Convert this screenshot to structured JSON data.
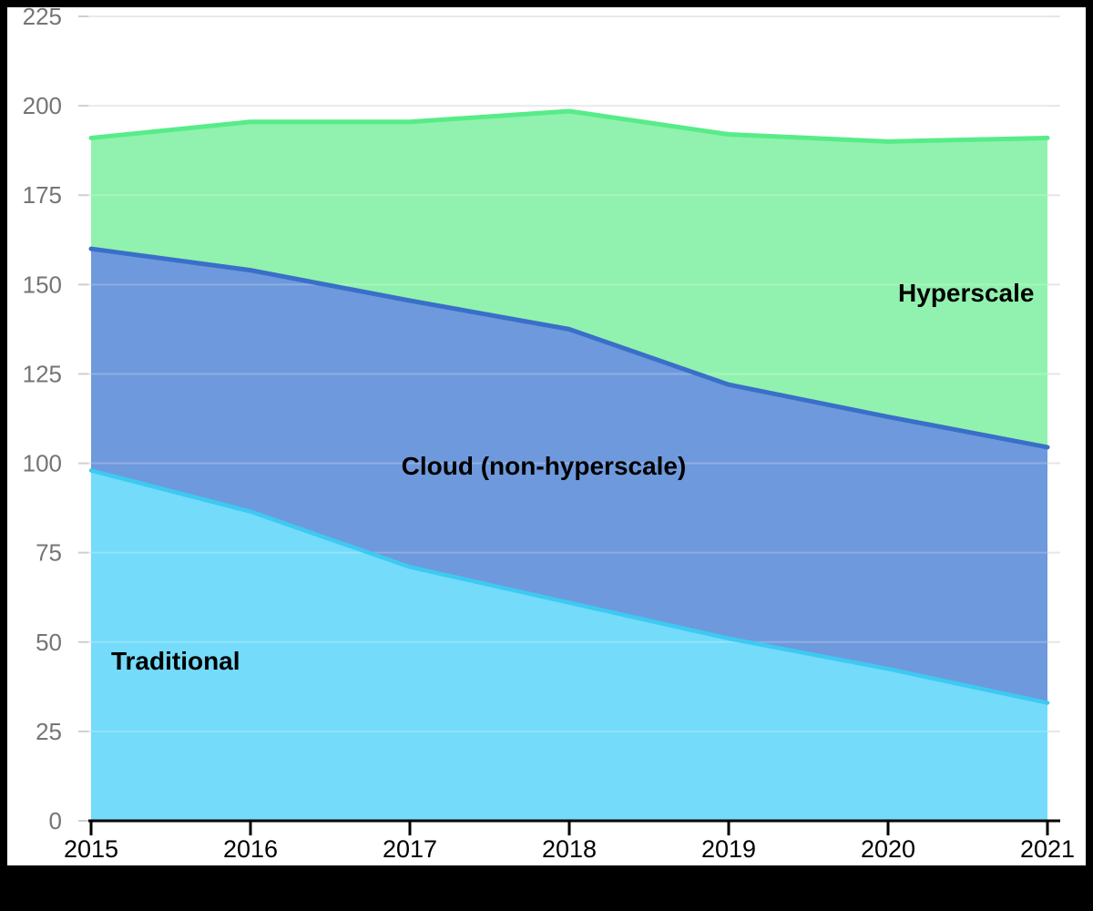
{
  "chart_data": {
    "type": "area",
    "stacked": true,
    "title": "",
    "xlabel": "",
    "ylabel": "",
    "x": [
      2015,
      2016,
      2017,
      2018,
      2019,
      2020,
      2021
    ],
    "x_tick_labels": [
      "2015",
      "2016",
      "2017",
      "2018",
      "2019",
      "2020",
      "2021"
    ],
    "y_tick_labels": [
      "0",
      "25",
      "50",
      "75",
      "100",
      "125",
      "150",
      "175",
      "200",
      "225"
    ],
    "y_tick_values": [
      0,
      25,
      50,
      75,
      100,
      125,
      150,
      175,
      200,
      225
    ],
    "ylim": [
      0,
      225
    ],
    "grid": "horizontal",
    "legend_position": "in-chart-labels",
    "series": [
      {
        "name": "Traditional",
        "values": [
          98,
          86.5,
          71,
          61,
          51,
          42.5,
          33
        ],
        "fill_color": "#74DBFA",
        "line_color": "#3DC9F2"
      },
      {
        "name": "Cloud (non-hyperscale)",
        "values": [
          62,
          67.5,
          74.5,
          76.5,
          71,
          70.5,
          71.5
        ],
        "fill_color": "#6E99DC",
        "line_color": "#3A6FC9"
      },
      {
        "name": "Hyperscale",
        "values": [
          31,
          41.5,
          50,
          61,
          70,
          77,
          86.5
        ],
        "fill_color": "#90F2AE",
        "line_color": "#57EC88"
      }
    ],
    "stacked_totals": [
      191,
      195.5,
      195.5,
      198.5,
      192,
      190,
      191
    ],
    "annotations": [
      {
        "text": "Traditional",
        "x": 2015.53,
        "y": 42.3,
        "color": "#000000"
      },
      {
        "text": "Cloud (non-hyperscale)",
        "x": 2017.84,
        "y": 96.8,
        "color": "#000000"
      },
      {
        "text": "Hyperscale",
        "x": 2020.49,
        "y": 145.2,
        "color": "#000000"
      }
    ],
    "colors": {
      "background": "#ffffff",
      "frame_border": "#000000",
      "gridline": "#E6E6E6",
      "gridline_over_fill": "rgba(255,255,255,0.22)",
      "axis_line": "#000000",
      "x_tick_label": "#000000",
      "y_tick_label": "#757575",
      "y_tick_mark": "#CFCFCF"
    }
  }
}
